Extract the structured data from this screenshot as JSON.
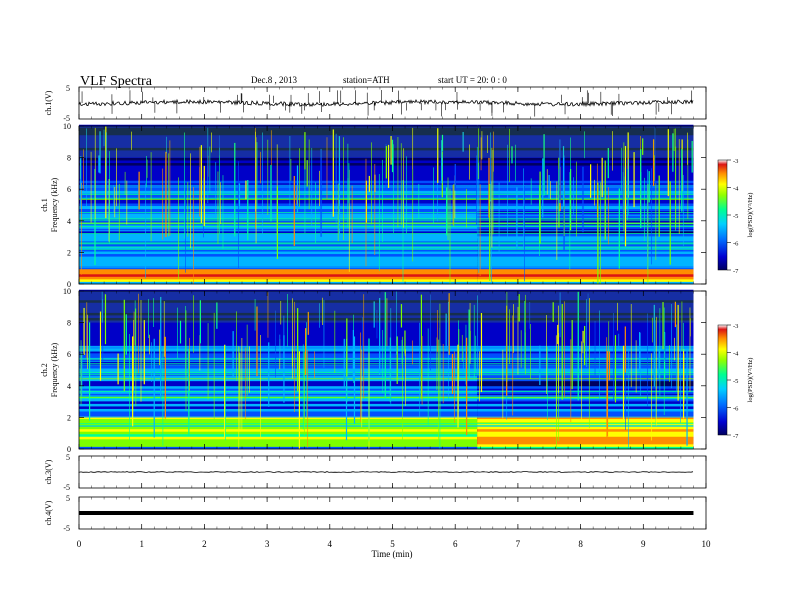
{
  "header": {
    "title": "VLF  Spectra",
    "date": "Dec.8  , 2013",
    "station": "station=ATH",
    "start": "start  UT  =   20: 0  : 0"
  },
  "colors": {
    "colormap": [
      "#000060",
      "#0000c8",
      "#0050ff",
      "#00b4ff",
      "#00ff9a",
      "#7cff00",
      "#ffff00",
      "#ff8c00",
      "#dc1414",
      "#ffffff"
    ]
  },
  "chart_data": [
    {
      "type": "line",
      "name": "ch1-voltage",
      "ylabel": "ch.1(V)",
      "ylim": [
        -5,
        5
      ],
      "y_ticks": [
        "5",
        "-5"
      ],
      "x_range_min": [
        0,
        9.8
      ],
      "trace": "noisy baseline near 0 V with sferic spikes"
    },
    {
      "type": "heatmap",
      "name": "ch1-spectrogram",
      "ylabel": "ch.1\nFrequency (kHz)",
      "ylim": [
        0,
        10
      ],
      "y_ticks": [
        "0",
        "2",
        "4",
        "6",
        "8",
        "10"
      ],
      "x_range_min": [
        0,
        9.8
      ],
      "colorbar": {
        "label": "log(PSD)(V²/Hz)",
        "range": [
          -7,
          -3
        ],
        "ticks": [
          "-3",
          "-4",
          "-5",
          "-6",
          "-7"
        ]
      },
      "features": {
        "strong_band_khz": [
          0.1,
          0.8
        ],
        "change_time_min": 6.35
      }
    },
    {
      "type": "heatmap",
      "name": "ch2-spectrogram",
      "ylabel": "ch.2\nFrequency (kHz)",
      "ylim": [
        0,
        10
      ],
      "y_ticks": [
        "0",
        "2",
        "4",
        "6",
        "8",
        "10"
      ],
      "x_range_min": [
        0,
        9.8
      ],
      "colorbar": {
        "label": "log(PSD)(V²/Hz)",
        "range": [
          -7,
          -3
        ],
        "ticks": [
          "-3",
          "-4",
          "-5",
          "-6",
          "-7"
        ]
      },
      "features": {
        "strong_band_khz": [
          0.1,
          2.0
        ],
        "change_time_min": 6.35
      }
    },
    {
      "type": "line",
      "name": "ch3-voltage",
      "ylabel": "ch.3(V)",
      "ylim": [
        -5,
        5
      ],
      "y_ticks": [
        "5",
        "-5"
      ],
      "x_range_min": [
        0,
        9.8
      ],
      "trace": "flat near 0 V"
    },
    {
      "type": "line",
      "name": "ch4-voltage",
      "ylabel": "ch.4(V)",
      "ylim": [
        -5,
        5
      ],
      "y_ticks": [
        "5",
        "-5"
      ],
      "x_range_min": [
        0,
        9.8
      ],
      "trace": "thick flat band near 0 V"
    }
  ],
  "x_axis": {
    "label": "Time  (min)",
    "ticks": [
      "0",
      "1",
      "2",
      "3",
      "4",
      "5",
      "6",
      "7",
      "8",
      "9",
      "10"
    ],
    "xlim": [
      0,
      10
    ]
  }
}
